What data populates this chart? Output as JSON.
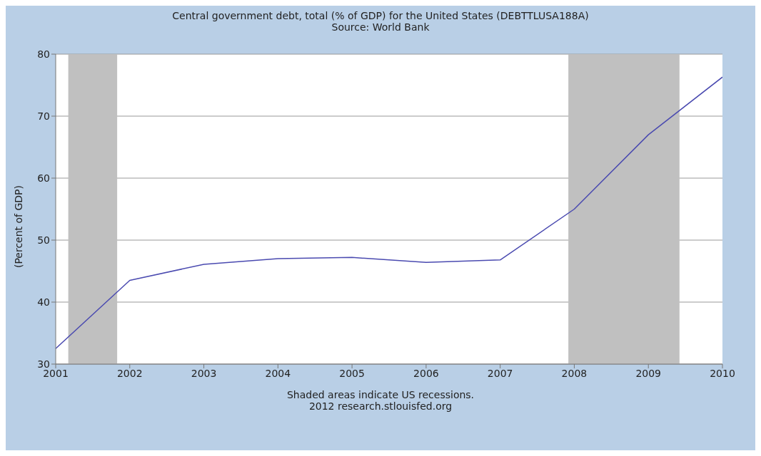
{
  "chart_data": {
    "type": "line",
    "title": "Central government debt, total (% of GDP) for the United States (DEBTTLUSA188A)",
    "subtitle": "Source: World Bank",
    "ylabel": "(Percent of GDP)",
    "x": [
      2001,
      2002,
      2003,
      2004,
      2005,
      2006,
      2007,
      2008,
      2009,
      2010
    ],
    "series": [
      {
        "color": "#4a4ab0",
        "values": [
          32.5,
          43.5,
          46.1,
          47.0,
          47.2,
          46.4,
          46.8,
          55.0,
          67.0,
          76.3
        ]
      }
    ],
    "xlim": [
      2001,
      2010
    ],
    "xticks": [
      2001,
      2002,
      2003,
      2004,
      2005,
      2006,
      2007,
      2008,
      2009,
      2010
    ],
    "ylim": [
      30,
      80
    ],
    "yticks": [
      30,
      40,
      50,
      60,
      70,
      80
    ],
    "bands": [
      {
        "axis": "x",
        "from": 2001.17,
        "to": 2001.83,
        "color": "#c0c0c0"
      },
      {
        "axis": "x",
        "from": 2007.92,
        "to": 2009.42,
        "color": "#c0c0c0"
      }
    ],
    "annotations": [
      "Shaded areas indicate US recessions.",
      "2012 research.stlouisfed.org"
    ],
    "grid": "y",
    "legend": false,
    "marker": "none",
    "line_style": "solid"
  }
}
